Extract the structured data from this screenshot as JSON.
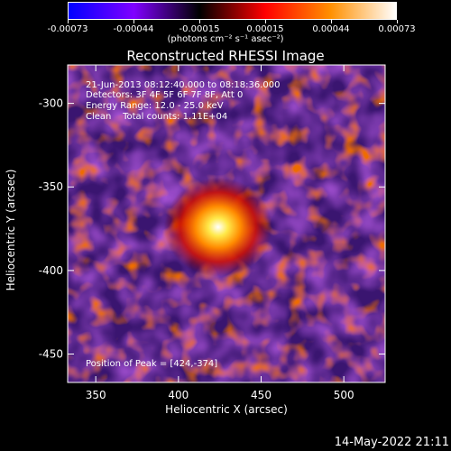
{
  "chart_data": {
    "type": "heatmap",
    "title": "Reconstructed RHESSI Image",
    "xlabel": "Heliocentric X (arcsec)",
    "ylabel": "Heliocentric Y (arcsec)",
    "xlim": [
      333,
      525
    ],
    "ylim": [
      -467,
      -277
    ],
    "x_ticks": [
      350,
      400,
      450,
      500
    ],
    "y_ticks": [
      -300,
      -350,
      -400,
      -450
    ],
    "colorbar": {
      "range": [
        -0.00073,
        0.00073
      ],
      "ticks": [
        "-0.00073",
        "-0.00044",
        "-0.00015",
        "0.00015",
        "0.00044",
        "0.00073"
      ],
      "unit": "(photons cm⁻² s⁻¹ asec⁻²)",
      "colors": [
        "#0000ff",
        "#8000ff",
        "#000000",
        "#ff0000",
        "#ff9000",
        "#ffffff"
      ]
    },
    "annotations": {
      "time_range": "21-Jun-2013 08:12:40.000 to 08:18:36.000",
      "detectors": "Detectors: 3F 4F 5F 6F 7F 8F, Att 0",
      "energy": "Energy Range: 12.0 - 25.0 keV",
      "method": "Clean    Total counts: 1.11E+04",
      "peak": "Position of Peak = [424,-374]"
    },
    "peak": {
      "x": 424,
      "y": -374
    }
  },
  "footer": {
    "timestamp": "14-May-2022 21:11"
  }
}
